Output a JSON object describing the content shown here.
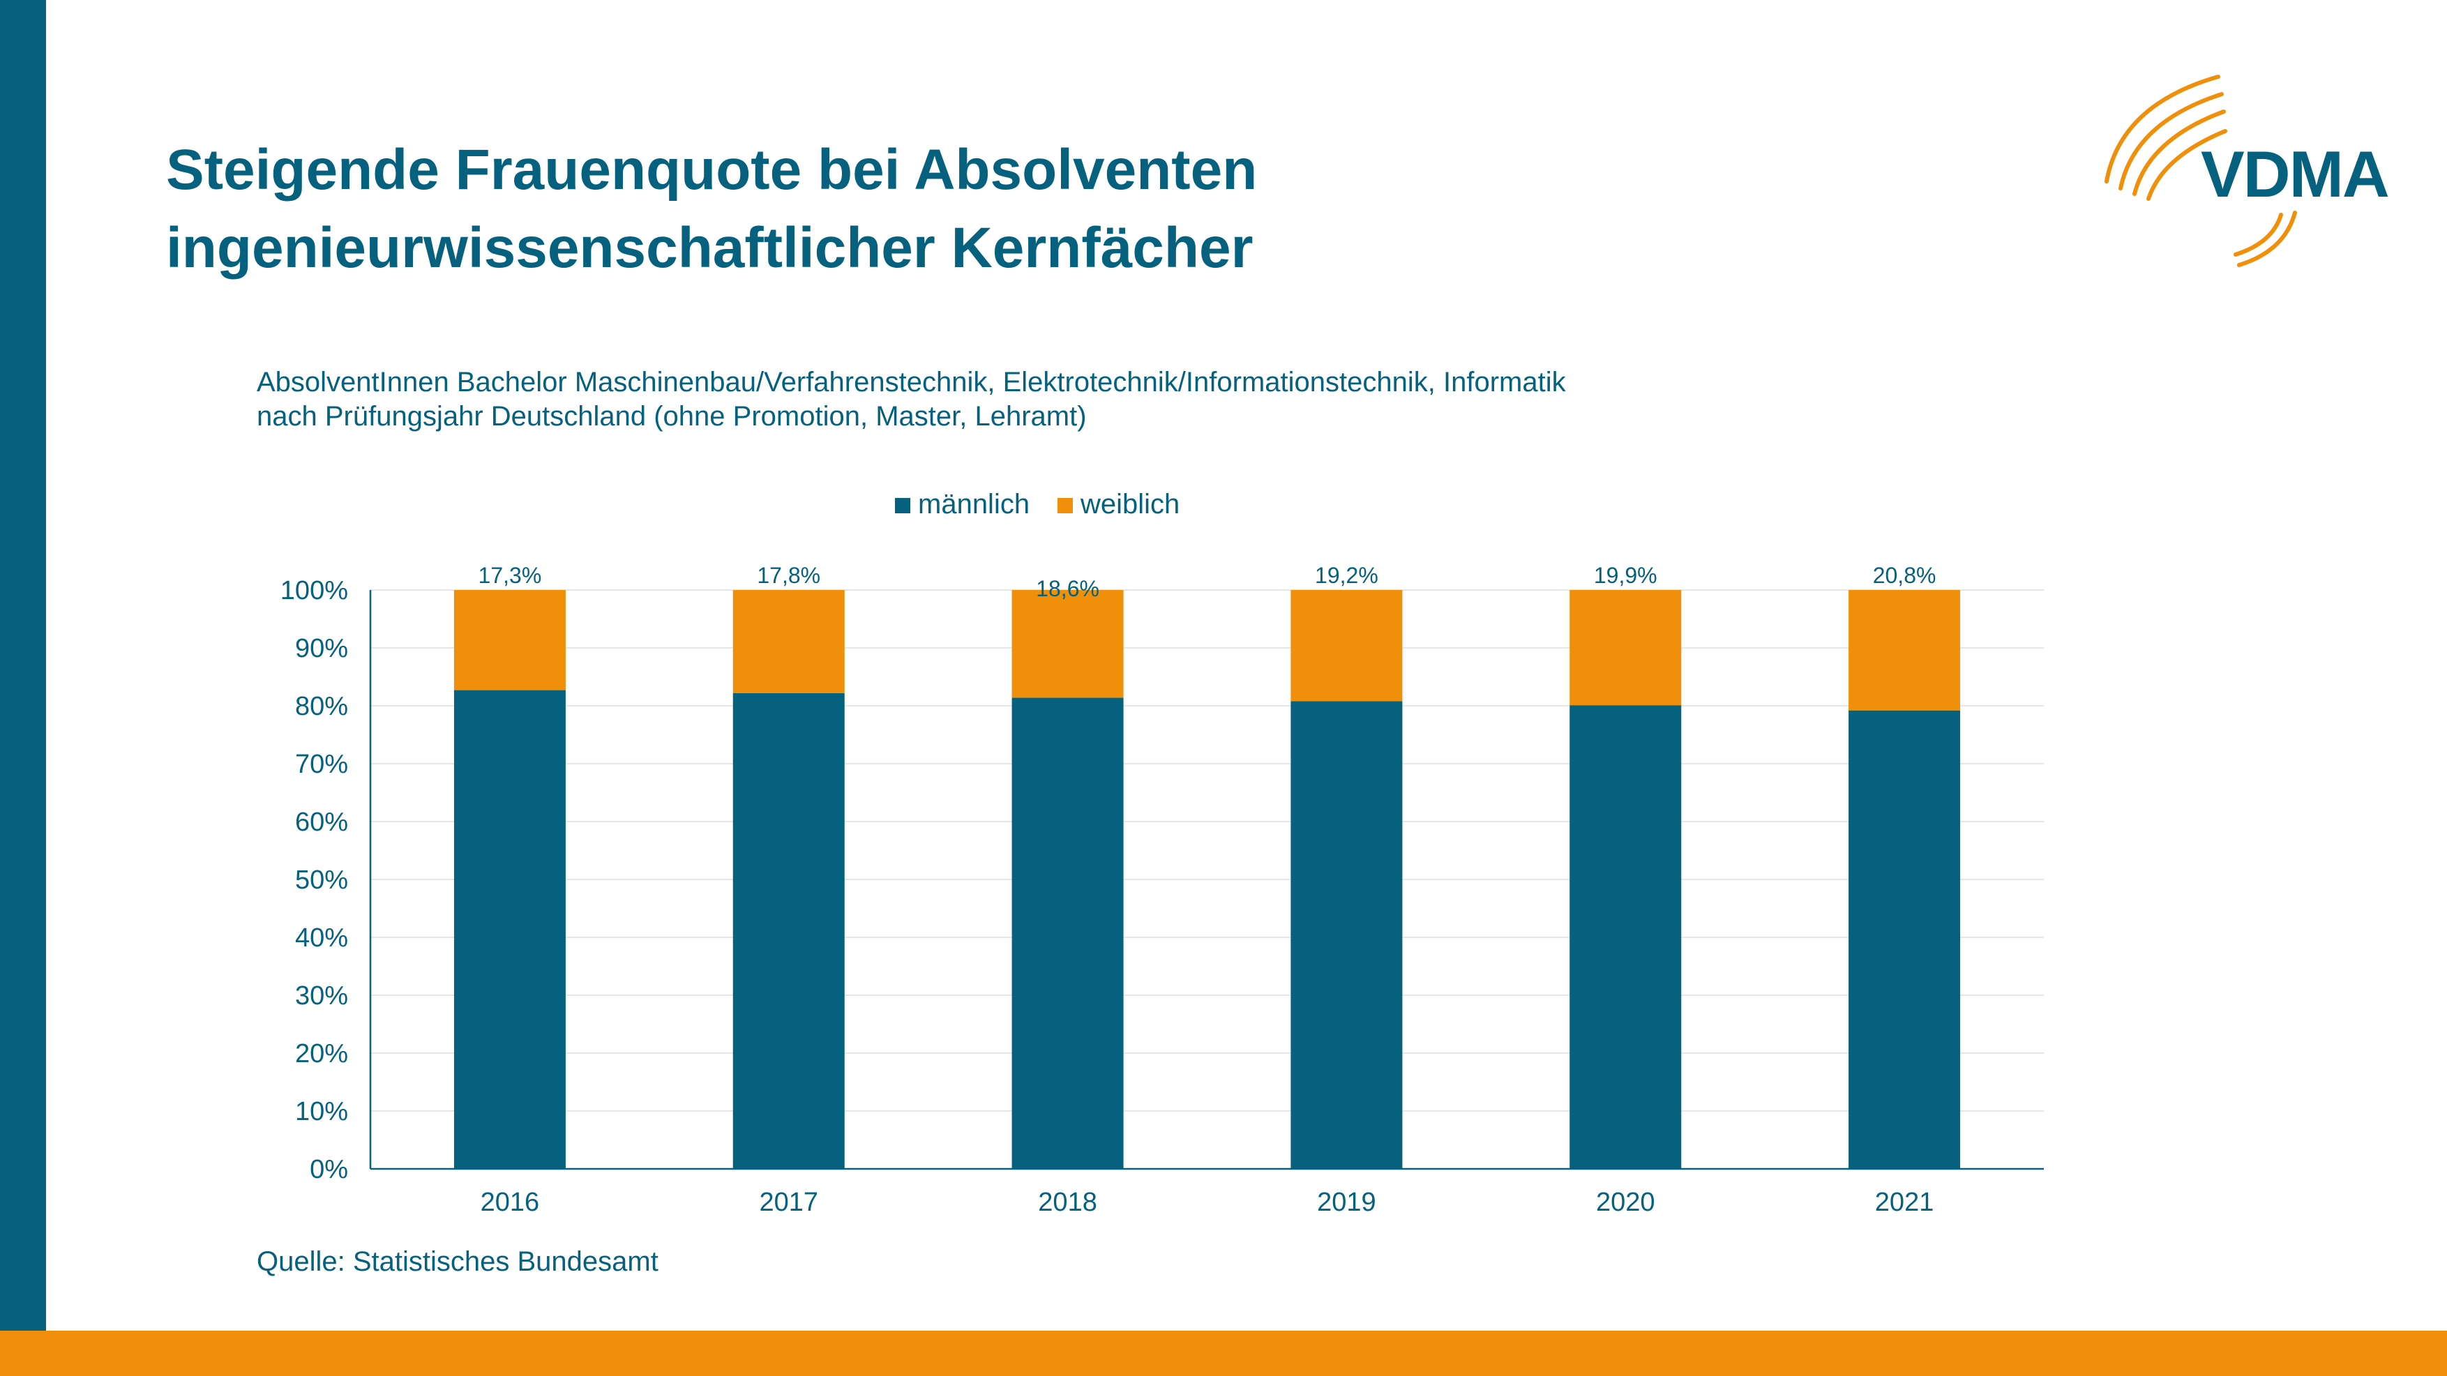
{
  "slide": {
    "title_line1": "Steigende Frauenquote bei Absolventen",
    "title_line2": "ingenieurwissenschaftlicher Kernfächer",
    "subtitle_line1": "AbsolventInnen Bachelor Maschinenbau/Verfahrenstechnik, Elektrotechnik/Informationstechnik, Informatik",
    "subtitle_line2": "nach Prüfungsjahr Deutschland (ohne Promotion, Master, Lehramt)",
    "source": "Quelle: Statistisches Bundesamt",
    "logo_text": "VDMA"
  },
  "colors": {
    "primary": "#06617f",
    "accent": "#f08f0a",
    "grid": "#e6e6e6"
  },
  "chart_data": {
    "type": "bar",
    "stacked": true,
    "categories": [
      "2016",
      "2017",
      "2018",
      "2019",
      "2020",
      "2021"
    ],
    "series": [
      {
        "name": "männlich",
        "values": [
          82.7,
          82.2,
          81.4,
          80.8,
          80.1,
          79.2
        ],
        "color": "#06617f"
      },
      {
        "name": "weiblich",
        "values": [
          17.3,
          17.8,
          18.6,
          19.2,
          19.9,
          20.8
        ],
        "color": "#f08f0a"
      }
    ],
    "data_labels": [
      "17,3%",
      "17,8%",
      "18,6%",
      "19,2%",
      "19,9%",
      "20,8%"
    ],
    "ylim": [
      0,
      100
    ],
    "yticks": [
      "0%",
      "10%",
      "20%",
      "30%",
      "40%",
      "50%",
      "60%",
      "70%",
      "80%",
      "90%",
      "100%"
    ],
    "legend": [
      "männlich",
      "weiblich"
    ],
    "legend_position": "top",
    "grid": true
  }
}
